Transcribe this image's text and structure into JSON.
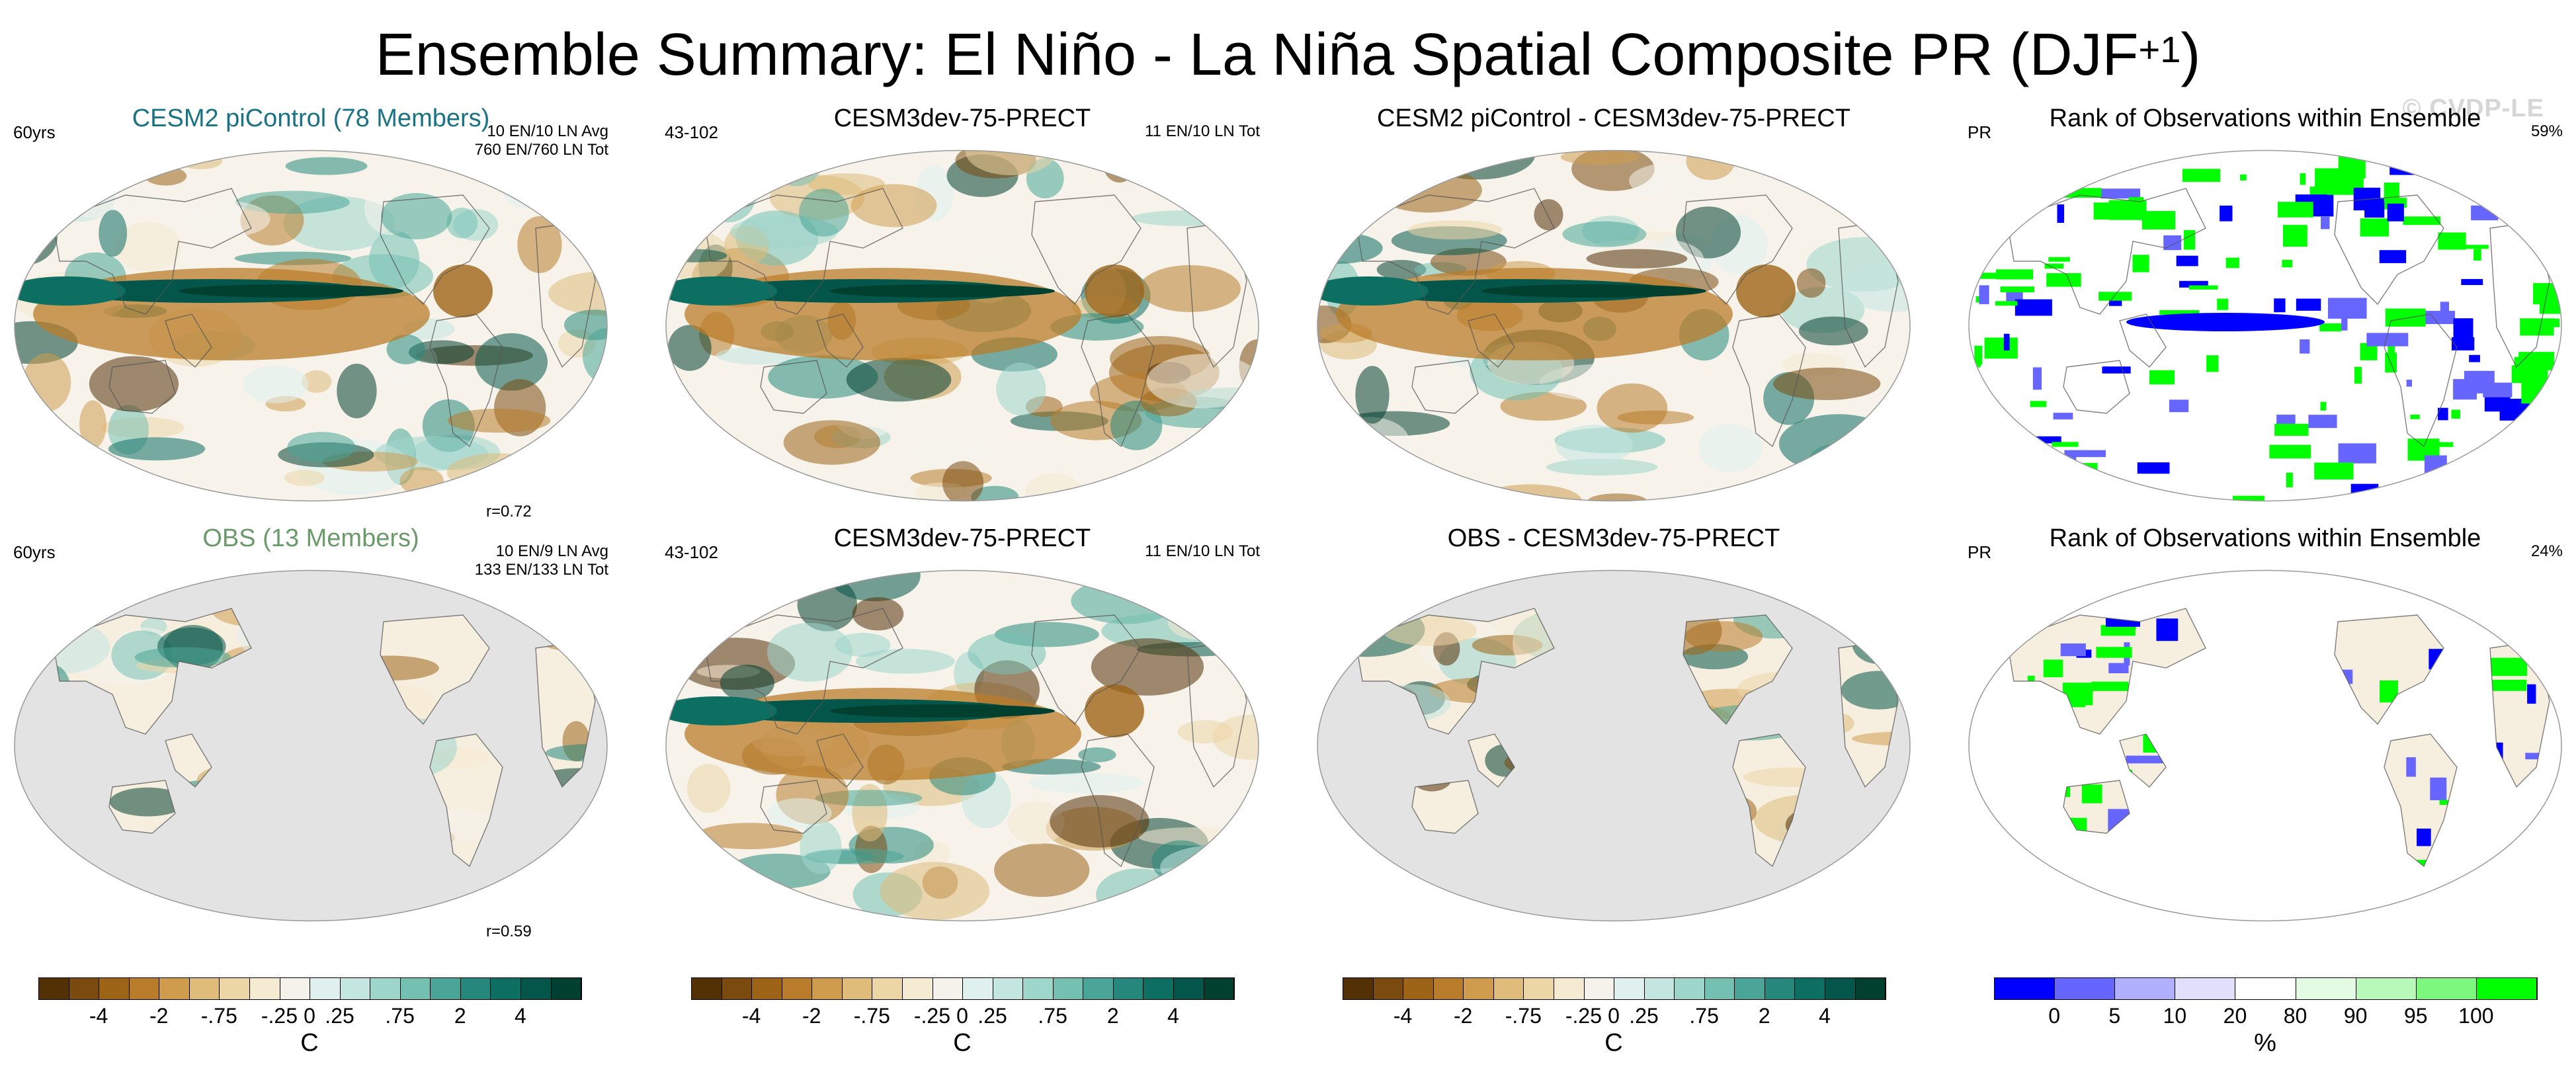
{
  "title": {
    "main": "Ensemble Summary: El Niño - La Niña Spatial Composite PR (DJF",
    "sup": "+1",
    "close": ")"
  },
  "watermark": "© CVDP-LE",
  "colors": {
    "brown_green_scale": [
      "#543005",
      "#7a4a0f",
      "#9d6417",
      "#b97c2a",
      "#cf9c4e",
      "#dfbc7a",
      "#ecd6a6",
      "#f5ead2",
      "#f4f2eb",
      "#e0f0ee",
      "#c3e6e0",
      "#9fd6cc",
      "#74c1b4",
      "#4aa598",
      "#26887c",
      "#0d6e62",
      "#035649",
      "#01402f"
    ],
    "rank_scale": [
      "#0000ff",
      "#6666ff",
      "#b0b0ff",
      "#e0e0fa",
      "#ffffff",
      "#e2fbe2",
      "#b8f8b8",
      "#7ef77e",
      "#00ff00"
    ],
    "land_mask": "#e3e3e3"
  },
  "panels": [
    {
      "title": "CESM2 piControl (78 Members)",
      "title_color": "#1a7384",
      "left_label": "60yrs",
      "right_lines": [
        "10 EN/10 LN Avg",
        "760 EN/760 LN Tot"
      ],
      "r_value": "r=0.72",
      "kind": "full"
    },
    {
      "title": "CESM3dev-75-PRECT",
      "title_color": "#000000",
      "left_label": "43-102",
      "right_lines": [
        "11 EN/10 LN Tot"
      ],
      "r_value": "",
      "kind": "full"
    },
    {
      "title": "CESM2 piControl - CESM3dev-75-PRECT",
      "title_color": "#000000",
      "left_label": "",
      "right_lines": [],
      "r_value": "",
      "kind": "full"
    },
    {
      "title": "Rank of Observations within Ensemble",
      "title_color": "#000000",
      "left_label": "PR",
      "right_lines": [
        "59%"
      ],
      "r_value": "",
      "kind": "rank"
    },
    {
      "title": "OBS (13 Members)",
      "title_color": "#6b9a6b",
      "left_label": "60yrs",
      "right_lines": [
        "10 EN/9 LN Avg",
        "133 EN/133 LN Tot"
      ],
      "r_value": "r=0.59",
      "kind": "land"
    },
    {
      "title": "CESM3dev-75-PRECT",
      "title_color": "#000000",
      "left_label": "43-102",
      "right_lines": [
        "11 EN/10 LN Tot"
      ],
      "r_value": "",
      "kind": "full"
    },
    {
      "title": "OBS - CESM3dev-75-PRECT",
      "title_color": "#000000",
      "left_label": "",
      "right_lines": [],
      "r_value": "",
      "kind": "land"
    },
    {
      "title": "Rank of Observations within Ensemble",
      "title_color": "#000000",
      "left_label": "PR",
      "right_lines": [
        "24%"
      ],
      "r_value": "",
      "kind": "rankland"
    }
  ],
  "colorbars": [
    {
      "labels": [
        "-4",
        "-2",
        "-.75",
        "-.25",
        "0",
        ".25",
        ".75",
        "2",
        "4"
      ],
      "unit": "C"
    },
    {
      "labels": [
        "-4",
        "-2",
        "-.75",
        "-.25",
        "0",
        ".25",
        ".75",
        "2",
        "4"
      ],
      "unit": "C"
    },
    {
      "labels": [
        "-4",
        "-2",
        "-.75",
        "-.25",
        "0",
        ".25",
        ".75",
        "2",
        "4"
      ],
      "unit": "C"
    },
    {
      "labels": [
        "0",
        "5",
        "10",
        "20",
        "80",
        "90",
        "95",
        "100"
      ],
      "unit": "%"
    }
  ]
}
